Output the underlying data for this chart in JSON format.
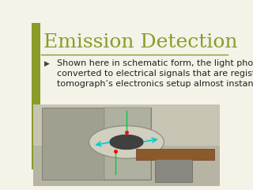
{
  "title": "Emission Detection",
  "title_color": "#8B9B2A",
  "title_fontsize": 18,
  "title_font": "serif",
  "bullet_text": "Shown here in schematic form, the light photons are\nconverted to electrical signals that are registered by the\ntomograph’s electronics setup almost instantly.",
  "bullet_fontsize": 8.0,
  "bullet_color": "#222222",
  "left_bar_color": "#8B9B2A",
  "separator_color": "#8B9B2A",
  "slide_bg": "#F5F2E8",
  "img_bg": "#C8C4B0",
  "gantry_color": "#A0A090",
  "gantry_edge": "#707060",
  "bore_color": "#D0CFC0",
  "inner_color": "#404040",
  "table_color": "#8B5A2B",
  "support_color": "#888880",
  "photon_color": "#00CC44",
  "cyan_color": "#00CCCC",
  "dot_color": "#FF0000"
}
